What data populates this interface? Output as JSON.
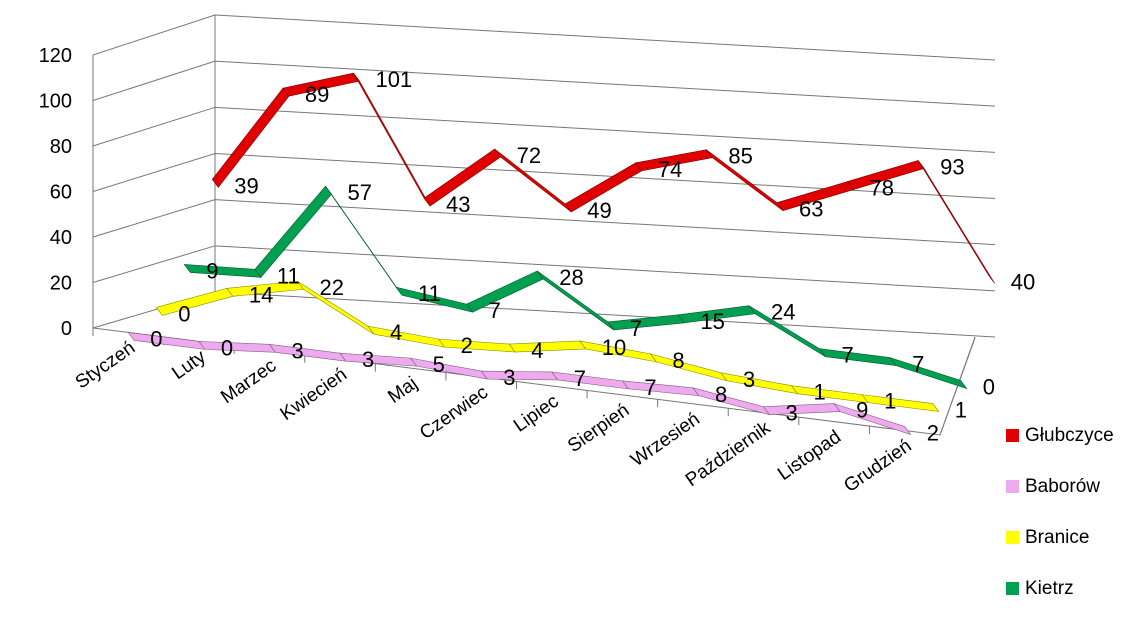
{
  "chart_data": {
    "type": "line",
    "categories": [
      "Styczeń",
      "Luty",
      "Marzec",
      "Kwiecień",
      "Maj",
      "Czerwiec",
      "Lipiec",
      "Sierpień",
      "Wrzesień",
      "Październik",
      "Listopad",
      "Grudzień"
    ],
    "series": [
      {
        "name": "Głubczyce",
        "color": "#e00000",
        "values": [
          39,
          89,
          101,
          43,
          72,
          49,
          74,
          85,
          63,
          78,
          93,
          40
        ]
      },
      {
        "name": "Baborów",
        "color": "#eeaaee",
        "values": [
          0,
          0,
          3,
          3,
          5,
          3,
          7,
          7,
          8,
          3,
          9,
          2
        ]
      },
      {
        "name": "Branice",
        "color": "#ffff00",
        "values": [
          0,
          14,
          22,
          4,
          2,
          4,
          10,
          8,
          3,
          1,
          1,
          1
        ]
      },
      {
        "name": "Kietrz",
        "color": "#00a050",
        "values": [
          9,
          11,
          57,
          11,
          7,
          28,
          7,
          15,
          24,
          7,
          7,
          0
        ]
      }
    ],
    "y_ticks": [
      "0",
      "20",
      "40",
      "60",
      "80",
      "100",
      "120"
    ],
    "ylim": [
      0,
      120
    ],
    "grid": true,
    "legend_position": "right"
  }
}
